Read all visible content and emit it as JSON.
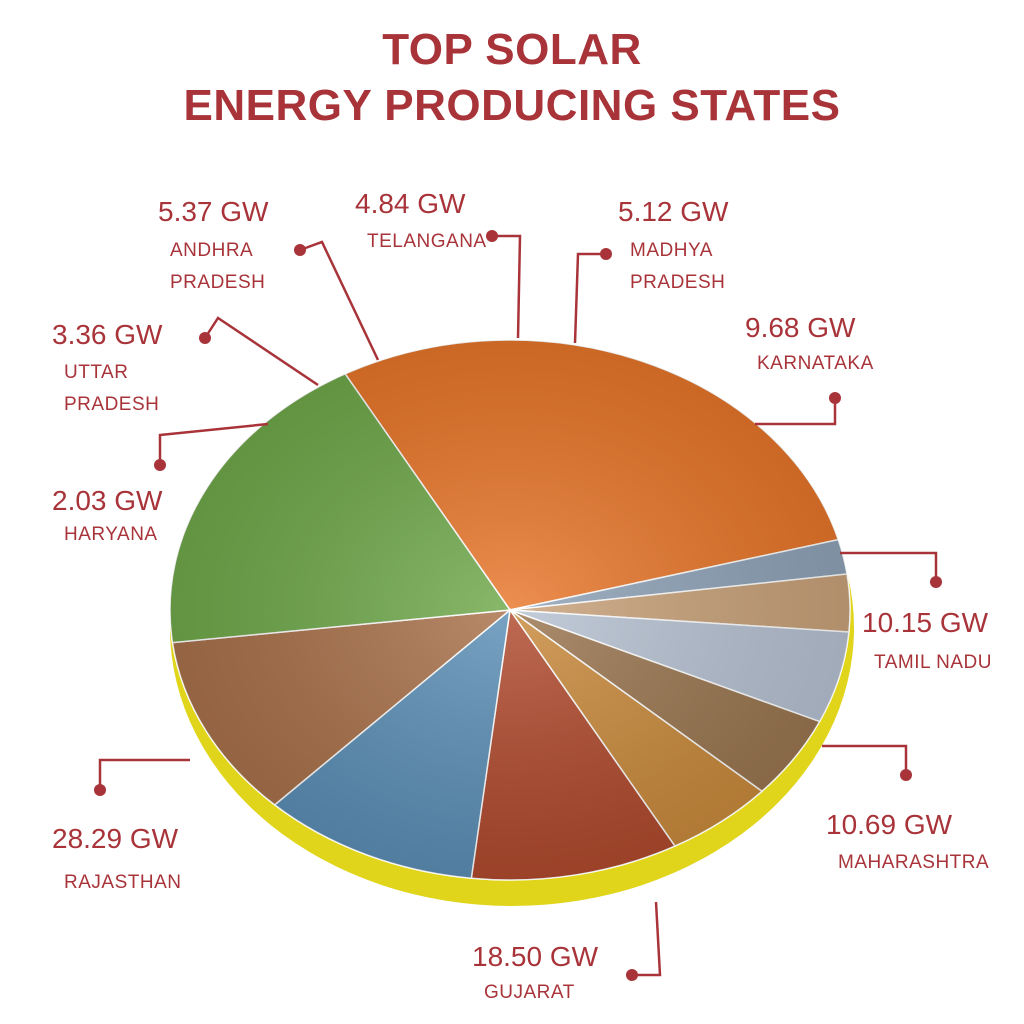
{
  "title": {
    "line1": "TOP SOLAR",
    "line2": "ENERGY PRODUCING STATES"
  },
  "colors": {
    "title": "#a8343a",
    "label": "#a8343a",
    "leader": "#a8343a",
    "rim": "#e1d51c"
  },
  "chart_data": {
    "type": "pie",
    "unit": "GW",
    "slices": [
      {
        "state": "Rajasthan",
        "value": 28.29,
        "value_label": "28.29 GW",
        "name_lines": [
          "RAJASTHAN"
        ],
        "color": "#e8762a"
      },
      {
        "state": "Haryana",
        "value": 2.03,
        "value_label": "2.03 GW",
        "name_lines": [
          "HARYANA"
        ],
        "color": "#8fa3b8"
      },
      {
        "state": "Uttar Pradesh",
        "value": 3.36,
        "value_label": "3.36  GW",
        "name_lines": [
          "UTTAR",
          "PRADESH"
        ],
        "color": "#c9a27a"
      },
      {
        "state": "Andhra Pradesh",
        "value": 5.37,
        "value_label": "5.37 GW",
        "name_lines": [
          "ANDHRA",
          "PRADESH"
        ],
        "color": "#b7c2d2"
      },
      {
        "state": "Telangana",
        "value": 4.84,
        "value_label": "4.84 GW",
        "name_lines": [
          "TELANGANA"
        ],
        "color": "#9a7650"
      },
      {
        "state": "Madhya Pradesh",
        "value": 5.12,
        "value_label": "5.12 GW",
        "name_lines": [
          "MADHYA",
          "PRADESH"
        ],
        "color": "#c98a3c"
      },
      {
        "state": "Karnataka",
        "value": 9.68,
        "value_label": "9.68 GW",
        "name_lines": [
          "KARNATAKA"
        ],
        "color": "#b04a2e"
      },
      {
        "state": "Tamil Nadu",
        "value": 10.15,
        "value_label": "10.15 GW",
        "name_lines": [
          "TAMIL NADU"
        ],
        "color": "#5c8fb6"
      },
      {
        "state": "Maharashtra",
        "value": 10.69,
        "value_label": "10.69 GW",
        "name_lines": [
          "MAHARASHTRA"
        ],
        "color": "#a9714a"
      },
      {
        "state": "Gujarat",
        "value": 18.5,
        "value_label": "18.50 GW",
        "name_lines": [
          "GUJARAT"
        ],
        "color": "#6fa84a"
      }
    ]
  }
}
